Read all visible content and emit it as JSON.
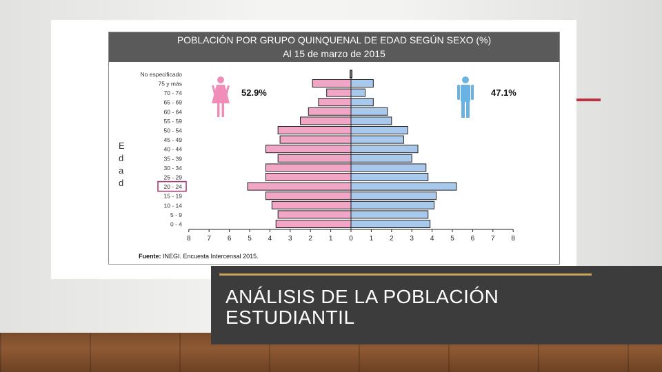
{
  "slide": {
    "title_line1": "ANÁLISIS DE LA POBLACIÓN",
    "title_line2": "ESTUDIANTIL"
  },
  "colors": {
    "female_bar": "#f2a6c6",
    "male_bar": "#a8c8ec",
    "female_icon": "#f08db8",
    "male_icon": "#6ab2e2",
    "header_bg": "#5a5a5a",
    "accent_red": "#b8323f",
    "accent_gold": "#c9a45a"
  },
  "icons": {
    "female": "woman-icon",
    "male": "man-icon"
  },
  "chart_data": {
    "type": "bar",
    "orientation": "horizontal-population-pyramid",
    "title": "POBLACIÓN POR GRUPO QUINQUENAL DE EDAD SEGÚN SEXO (%)",
    "subtitle": "Al 15 de marzo de 2015",
    "ylabel_letters": [
      "E",
      "d",
      "a",
      "d"
    ],
    "categories": [
      "0 - 4",
      "5 - 9",
      "10 - 14",
      "15 - 19",
      "20 - 24",
      "25 - 29",
      "30 - 34",
      "35 - 39",
      "40 - 44",
      "45 - 49",
      "50 - 54",
      "55 - 59",
      "60 - 64",
      "65 - 69",
      "70 - 74",
      "75 y más",
      "No especificado"
    ],
    "series": [
      {
        "values": [
          3.7,
          3.6,
          3.9,
          4.2,
          5.1,
          4.2,
          4.2,
          3.6,
          4.2,
          3.5,
          3.6,
          2.5,
          2.1,
          1.6,
          1.2,
          1.9,
          0.05
        ]
      },
      {
        "values": [
          3.9,
          3.8,
          4.1,
          4.2,
          5.2,
          3.8,
          3.7,
          3.0,
          3.3,
          2.6,
          2.8,
          2.0,
          1.8,
          1.1,
          0.7,
          1.1,
          0.05
        ]
      }
    ],
    "percent_labels": {
      "female": "52.9%",
      "male": "47.1%"
    },
    "xticks": [
      "8",
      "7",
      "6",
      "5",
      "4",
      "3",
      "2",
      "1",
      "0",
      "1",
      "2",
      "3",
      "4",
      "5",
      "6",
      "7",
      "8"
    ],
    "xlim": [
      -8,
      8
    ],
    "highlighted_category": "20 - 24",
    "source": {
      "label": "Fuente:",
      "text": "INEGI. Encuesta Intercensal 2015."
    },
    "grid": false
  }
}
